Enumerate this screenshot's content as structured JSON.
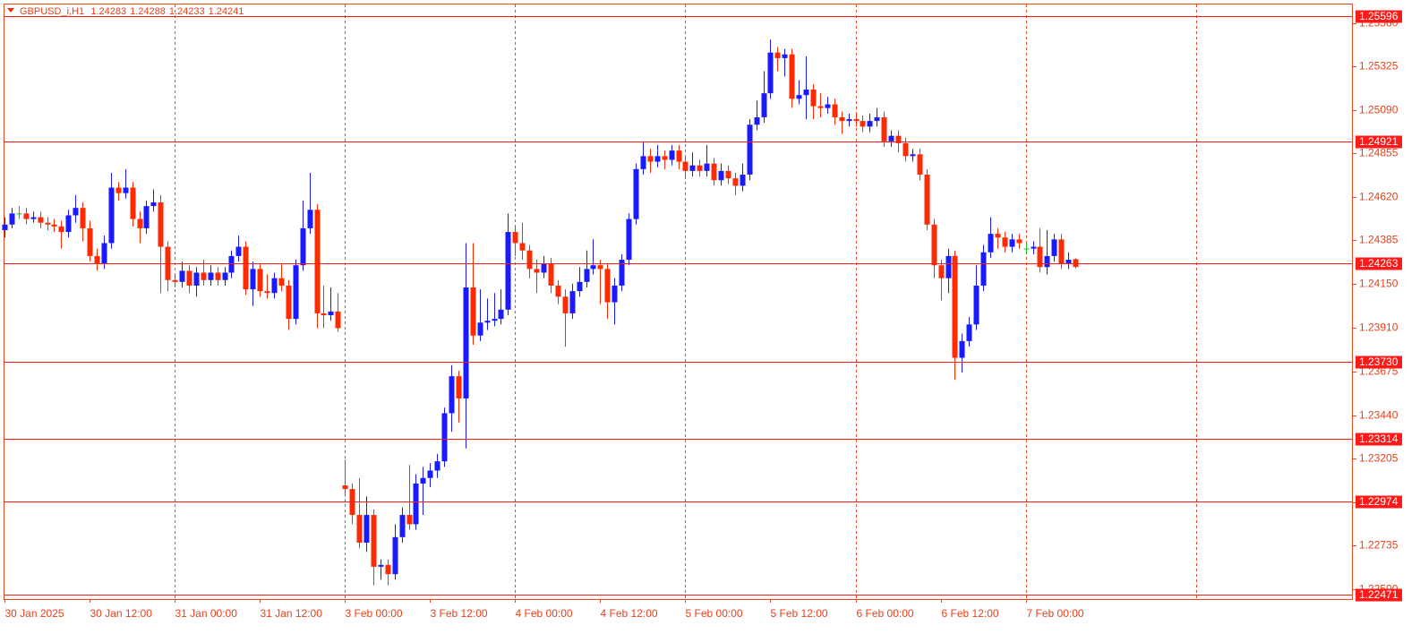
{
  "chart_data": {
    "type": "candlestick",
    "title": "GBPUSD_i,H1",
    "up_color": "#1a1aff",
    "down_color": "#ff2a00",
    "doji_color": "#22bb22",
    "level_color": "#ff1a1a",
    "grid_color": "#e8481e",
    "xlim": [
      0,
      190
    ],
    "ylim": [
      1.2245,
      1.2566
    ],
    "xgrid": [
      24,
      48,
      72,
      96,
      120,
      144,
      168
    ],
    "xticks": [
      {
        "value": 0,
        "label": "30 Jan 2025"
      },
      {
        "value": 12,
        "label": "30 Jan 12:00"
      },
      {
        "value": 24,
        "label": "31 Jan 00:00"
      },
      {
        "value": 36,
        "label": "31 Jan 12:00"
      },
      {
        "value": 48,
        "label": "3 Feb 00:00"
      },
      {
        "value": 60,
        "label": "3 Feb 12:00"
      },
      {
        "value": 72,
        "label": "4 Feb 00:00"
      },
      {
        "value": 84,
        "label": "4 Feb 12:00"
      },
      {
        "value": 96,
        "label": "5 Feb 00:00"
      },
      {
        "value": 108,
        "label": "5 Feb 12:00"
      },
      {
        "value": 120,
        "label": "6 Feb 00:00"
      },
      {
        "value": 132,
        "label": "6 Feb 12:00"
      },
      {
        "value": 144,
        "label": "7 Feb 00:00"
      }
    ],
    "yticks": [
      {
        "value": 1.2556,
        "label": "1.25560"
      },
      1.25325,
      {
        "value": 1.2509,
        "label": "1.25090"
      },
      1.24855,
      {
        "value": 1.2462,
        "label": "1.24620"
      },
      1.24385,
      {
        "value": 1.2415,
        "label": "1.24150"
      },
      {
        "value": 1.2391,
        "label": "1.23910"
      },
      1.23675,
      {
        "value": 1.2344,
        "label": "1.23440"
      },
      1.23205,
      {
        "value": 1.2297,
        "label": "1.22970"
      },
      1.22735,
      {
        "value": 1.225,
        "label": "1.22500"
      }
    ],
    "levels": [
      1.25596,
      1.24921,
      1.24263,
      {
        "value": 1.2373,
        "label": "1.23730"
      },
      1.23314,
      1.22974,
      1.22471
    ],
    "candles": [
      [
        1.2444,
        1.2451,
        1.244,
        1.2447
      ],
      [
        1.2447,
        1.2456,
        1.2445,
        1.2453
      ],
      [
        1.2453,
        1.2457,
        1.245,
        1.2453
      ],
      [
        1.2453,
        1.2456,
        1.2447,
        1.245
      ],
      [
        1.245,
        1.2454,
        1.2448,
        1.2451
      ],
      [
        1.2451,
        1.2454,
        1.2445,
        1.2448
      ],
      [
        1.2448,
        1.2451,
        1.2444,
        1.2447
      ],
      [
        1.2447,
        1.245,
        1.2443,
        1.2446
      ],
      [
        1.2446,
        1.2449,
        1.2434,
        1.2443
      ],
      [
        1.2443,
        1.2455,
        1.244,
        1.2452
      ],
      [
        1.2452,
        1.2463,
        1.2448,
        1.2456
      ],
      [
        1.2456,
        1.2459,
        1.2438,
        1.2445
      ],
      [
        1.2445,
        1.2449,
        1.2427,
        1.243
      ],
      [
        1.243,
        1.2434,
        1.2422,
        1.2426
      ],
      [
        1.2426,
        1.2441,
        1.2423,
        1.2437
      ],
      [
        1.2437,
        1.2475,
        1.2434,
        1.2467
      ],
      [
        1.2467,
        1.247,
        1.246,
        1.2464
      ],
      [
        1.2464,
        1.2477,
        1.2461,
        1.2467
      ],
      [
        1.2467,
        1.247,
        1.2446,
        1.245
      ],
      [
        1.245,
        1.2454,
        1.2437,
        1.2445
      ],
      [
        1.2445,
        1.246,
        1.2442,
        1.2457
      ],
      [
        1.2457,
        1.2466,
        1.2454,
        1.2459
      ],
      [
        1.2459,
        1.2463,
        1.241,
        1.2435
      ],
      [
        1.2435,
        1.2438,
        1.2411,
        1.2417
      ],
      [
        1.2417,
        1.242,
        1.2413,
        1.2416
      ],
      [
        1.2416,
        1.2427,
        1.2413,
        1.2422
      ],
      [
        1.2422,
        1.2425,
        1.241,
        1.2414
      ],
      [
        1.2414,
        1.2424,
        1.2408,
        1.2421
      ],
      [
        1.2421,
        1.2428,
        1.2414,
        1.2417
      ],
      [
        1.2417,
        1.2425,
        1.2414,
        1.2421
      ],
      [
        1.2421,
        1.2424,
        1.2414,
        1.2417
      ],
      [
        1.2417,
        1.2424,
        1.2414,
        1.2421
      ],
      [
        1.2421,
        1.2433,
        1.2418,
        1.243
      ],
      [
        1.243,
        1.2441,
        1.2427,
        1.2435
      ],
      [
        1.2435,
        1.2438,
        1.2409,
        1.2412
      ],
      [
        1.2412,
        1.2427,
        1.2403,
        1.2423
      ],
      [
        1.2423,
        1.2426,
        1.2408,
        1.2411
      ],
      [
        1.2411,
        1.242,
        1.2407,
        1.241
      ],
      [
        1.241,
        1.2421,
        1.2407,
        1.2418
      ],
      [
        1.2418,
        1.2426,
        1.2411,
        1.2414
      ],
      [
        1.2414,
        1.2417,
        1.239,
        1.2396
      ],
      [
        1.2396,
        1.2428,
        1.2393,
        1.2425
      ],
      [
        1.2425,
        1.246,
        1.2422,
        1.2445
      ],
      [
        1.2445,
        1.2475,
        1.2442,
        1.2455
      ],
      [
        1.2455,
        1.2458,
        1.2391,
        1.2399
      ],
      [
        1.2399,
        1.2414,
        1.2391,
        1.2398
      ],
      [
        1.2398,
        1.2413,
        1.2395,
        1.24
      ],
      [
        1.24,
        1.241,
        1.2389,
        1.2391
      ],
      [
        1.2306,
        1.232,
        1.23,
        1.2304
      ],
      [
        1.2304,
        1.2307,
        1.2285,
        1.229
      ],
      [
        1.229,
        1.231,
        1.2272,
        1.2275
      ],
      [
        1.2275,
        1.23,
        1.227,
        1.229
      ],
      [
        1.229,
        1.2293,
        1.2252,
        1.2262
      ],
      [
        1.2262,
        1.2266,
        1.2255,
        1.2263
      ],
      [
        1.2263,
        1.2266,
        1.2252,
        1.2258
      ],
      [
        1.2258,
        1.2285,
        1.2255,
        1.2278
      ],
      [
        1.2278,
        1.2294,
        1.2275,
        1.229
      ],
      [
        1.229,
        1.2317,
        1.2282,
        1.2285
      ],
      [
        1.2285,
        1.2312,
        1.2282,
        1.2307
      ],
      [
        1.2307,
        1.2316,
        1.229,
        1.231
      ],
      [
        1.231,
        1.2318,
        1.2305,
        1.2314
      ],
      [
        1.2314,
        1.2323,
        1.231,
        1.2319
      ],
      [
        1.2319,
        1.2348,
        1.2316,
        1.2345
      ],
      [
        1.2345,
        1.2371,
        1.2335,
        1.2365
      ],
      [
        1.2365,
        1.2368,
        1.234,
        1.2353
      ],
      [
        1.2353,
        1.2437,
        1.2326,
        1.2413
      ],
      [
        1.2413,
        1.2437,
        1.2382,
        1.2387
      ],
      [
        1.2387,
        1.2412,
        1.2384,
        1.2394
      ],
      [
        1.2394,
        1.2407,
        1.239,
        1.2395
      ],
      [
        1.2395,
        1.241,
        1.2392,
        1.2396
      ],
      [
        1.2396,
        1.2412,
        1.2393,
        1.2401
      ],
      [
        1.2401,
        1.2453,
        1.2398,
        1.2443
      ],
      [
        1.2443,
        1.2446,
        1.243,
        1.2437
      ],
      [
        1.2437,
        1.2448,
        1.2428,
        1.2433
      ],
      [
        1.2433,
        1.2436,
        1.2418,
        1.2423
      ],
      [
        1.2423,
        1.2428,
        1.241,
        1.2421
      ],
      [
        1.2421,
        1.243,
        1.2418,
        1.2426
      ],
      [
        1.2426,
        1.2429,
        1.241,
        1.2414
      ],
      [
        1.2414,
        1.2417,
        1.2404,
        1.2408
      ],
      [
        1.2408,
        1.2412,
        1.2381,
        1.2399
      ],
      [
        1.2399,
        1.2415,
        1.2396,
        1.2411
      ],
      [
        1.2411,
        1.2424,
        1.2408,
        1.2416
      ],
      [
        1.2416,
        1.2433,
        1.2413,
        1.2423
      ],
      [
        1.2423,
        1.2439,
        1.242,
        1.2425
      ],
      [
        1.2425,
        1.2428,
        1.2404,
        1.2423
      ],
      [
        1.2423,
        1.2426,
        1.2396,
        1.2405
      ],
      [
        1.2405,
        1.2418,
        1.2393,
        1.2414
      ],
      [
        1.2414,
        1.2431,
        1.2411,
        1.2428
      ],
      [
        1.2428,
        1.2453,
        1.2425,
        1.245
      ],
      [
        1.245,
        1.248,
        1.2447,
        1.2477
      ],
      [
        1.2477,
        1.2492,
        1.2474,
        1.2484
      ],
      [
        1.2484,
        1.2488,
        1.2475,
        1.2481
      ],
      [
        1.2481,
        1.249,
        1.2478,
        1.2484
      ],
      [
        1.2484,
        1.2487,
        1.2477,
        1.2482
      ],
      [
        1.2482,
        1.249,
        1.2479,
        1.2487
      ],
      [
        1.2487,
        1.249,
        1.2477,
        1.2481
      ],
      [
        1.2481,
        1.2484,
        1.2473,
        1.2476
      ],
      [
        1.2476,
        1.2486,
        1.2473,
        1.2479
      ],
      [
        1.2479,
        1.2482,
        1.2473,
        1.2476
      ],
      [
        1.2476,
        1.249,
        1.2473,
        1.248
      ],
      [
        1.248,
        1.2483,
        1.2468,
        1.2471
      ],
      [
        1.2471,
        1.248,
        1.2468,
        1.2476
      ],
      [
        1.2476,
        1.2479,
        1.2469,
        1.2472
      ],
      [
        1.2472,
        1.2475,
        1.2463,
        1.2468
      ],
      [
        1.2468,
        1.248,
        1.2465,
        1.2474
      ],
      [
        1.2474,
        1.2504,
        1.2471,
        1.2501
      ],
      [
        1.2501,
        1.2514,
        1.2498,
        1.2505
      ],
      [
        1.2505,
        1.253,
        1.2502,
        1.2518
      ],
      [
        1.2518,
        1.2547,
        1.2515,
        1.254
      ],
      [
        1.254,
        1.2543,
        1.253,
        1.2537
      ],
      [
        1.2537,
        1.2542,
        1.2527,
        1.2539
      ],
      [
        1.2539,
        1.2542,
        1.251,
        1.2515
      ],
      [
        1.2515,
        1.2525,
        1.2512,
        1.2517
      ],
      [
        1.2517,
        1.2538,
        1.2504,
        1.252
      ],
      [
        1.252,
        1.2523,
        1.2504,
        1.2511
      ],
      [
        1.2511,
        1.2518,
        1.2505,
        1.251
      ],
      [
        1.251,
        1.2516,
        1.2507,
        1.2512
      ],
      [
        1.2512,
        1.2515,
        1.2501,
        1.2505
      ],
      [
        1.2505,
        1.2508,
        1.2496,
        1.2503
      ],
      [
        1.2503,
        1.2507,
        1.25,
        1.2504
      ],
      [
        1.2504,
        1.2507,
        1.25,
        1.2503
      ],
      [
        1.2503,
        1.2506,
        1.2497,
        1.25
      ],
      [
        1.25,
        1.2507,
        1.2497,
        1.2503
      ],
      [
        1.2503,
        1.251,
        1.25,
        1.2505
      ],
      [
        1.2505,
        1.2508,
        1.2489,
        1.2492
      ],
      [
        1.2492,
        1.2498,
        1.2489,
        1.2495
      ],
      [
        1.2495,
        1.2498,
        1.2486,
        1.2491
      ],
      [
        1.2491,
        1.2494,
        1.2481,
        1.2484
      ],
      [
        1.2484,
        1.2488,
        1.2481,
        1.2485
      ],
      [
        1.2485,
        1.2488,
        1.2471,
        1.2474
      ],
      [
        1.2474,
        1.2477,
        1.2444,
        1.2447
      ],
      [
        1.2447,
        1.245,
        1.2418,
        1.2425
      ],
      [
        1.2425,
        1.2428,
        1.2406,
        1.2418
      ],
      [
        1.2418,
        1.2434,
        1.241,
        1.243
      ],
      [
        1.243,
        1.2433,
        1.2363,
        1.2375
      ],
      [
        1.2375,
        1.2388,
        1.2367,
        1.2384
      ],
      [
        1.2384,
        1.2397,
        1.2381,
        1.2393
      ],
      [
        1.2393,
        1.2425,
        1.239,
        1.2414
      ],
      [
        1.2414,
        1.2436,
        1.2411,
        1.2432
      ],
      [
        1.2432,
        1.2451,
        1.2429,
        1.2442
      ],
      [
        1.2442,
        1.2445,
        1.2434,
        1.244
      ],
      [
        1.244,
        1.2443,
        1.2432,
        1.2435
      ],
      [
        1.2435,
        1.2442,
        1.2432,
        1.2439
      ],
      [
        1.2439,
        1.2442,
        1.2434,
        1.2437
      ],
      [
        1.2434,
        1.2437,
        1.2431,
        1.2434
      ],
      [
        1.2434,
        1.2438,
        1.2431,
        1.2435
      ],
      [
        1.2435,
        1.2445,
        1.2421,
        1.2424
      ],
      [
        1.2424,
        1.2444,
        1.242,
        1.243
      ],
      [
        1.243,
        1.2442,
        1.2427,
        1.2439
      ],
      [
        1.2439,
        1.2442,
        1.2423,
        1.2426
      ],
      [
        1.2426,
        1.2432,
        1.2423,
        1.2428
      ],
      [
        1.24283,
        1.24288,
        1.24233,
        1.24241
      ]
    ]
  }
}
